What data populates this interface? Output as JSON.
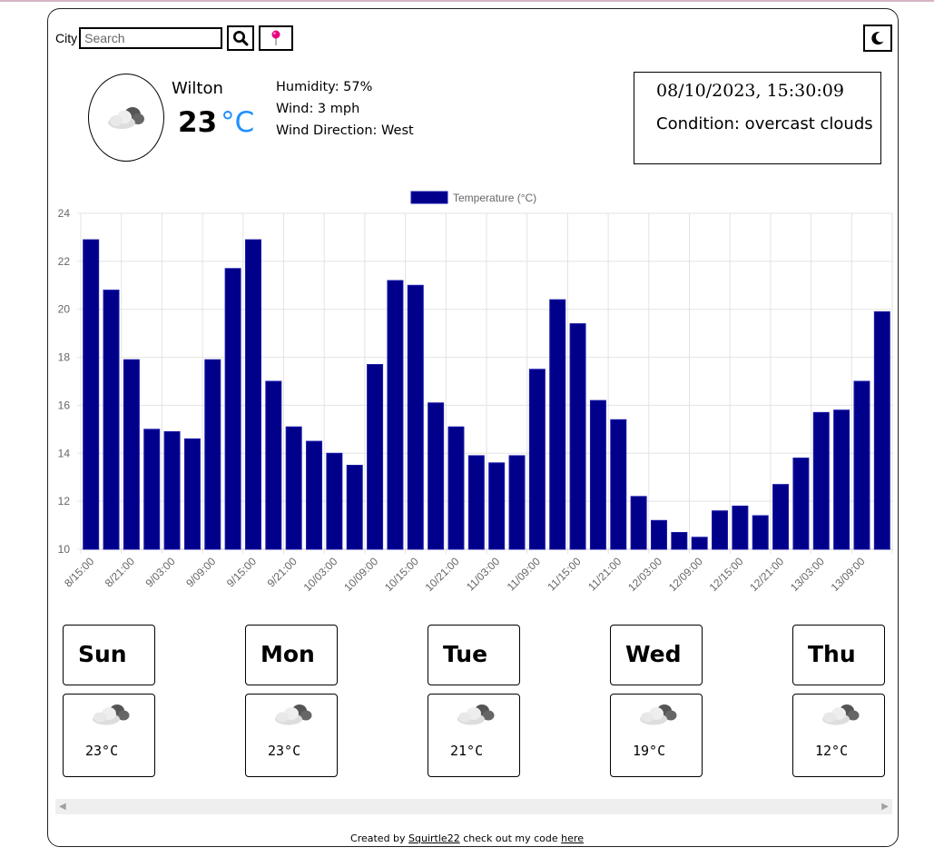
{
  "search": {
    "label": "City",
    "placeholder": "Search"
  },
  "current": {
    "city": "Wilton",
    "temp": "23",
    "unit": "°C",
    "humidity": "Humidity: 57%",
    "wind": "Wind: 3 mph",
    "wind_direction": "Wind Direction: West",
    "datetime": "08/10/2023, 15:30:09",
    "condition": "Condition: overcast clouds",
    "icon": "overcast-clouds-icon"
  },
  "chart_data": {
    "type": "bar",
    "legend": "Temperature (°C)",
    "legend_position": "top",
    "grid": true,
    "ylim": [
      10,
      24
    ],
    "yticks": [
      10,
      12,
      14,
      16,
      18,
      20,
      22,
      24
    ],
    "color": "#00008b",
    "categories": [
      "8/15:00",
      "8/18:00",
      "8/21:00",
      "9/00:00",
      "9/03:00",
      "9/06:00",
      "9/09:00",
      "9/12:00",
      "9/15:00",
      "9/18:00",
      "9/21:00",
      "10/00:00",
      "10/03:00",
      "10/06:00",
      "10/09:00",
      "10/12:00",
      "10/15:00",
      "10/18:00",
      "10/21:00",
      "11/00:00",
      "11/03:00",
      "11/06:00",
      "11/09:00",
      "11/12:00",
      "11/15:00",
      "11/18:00",
      "11/21:00",
      "12/00:00",
      "12/03:00",
      "12/06:00",
      "12/09:00",
      "12/12:00",
      "12/15:00",
      "12/18:00",
      "12/21:00",
      "13/00:00",
      "13/03:00",
      "13/06:00",
      "13/09:00",
      "13/12:00"
    ],
    "tick_labels": [
      "8/15:00",
      "8/21:00",
      "9/03:00",
      "9/09:00",
      "9/15:00",
      "9/21:00",
      "10/03:00",
      "10/09:00",
      "10/15:00",
      "10/21:00",
      "11/03:00",
      "11/09:00",
      "11/15:00",
      "11/21:00",
      "12/03:00",
      "12/09:00",
      "12/15:00",
      "12/21:00",
      "13/03:00",
      "13/09:00"
    ],
    "values": [
      22.9,
      20.8,
      17.9,
      15.0,
      14.9,
      14.6,
      17.9,
      21.7,
      22.9,
      17.0,
      15.1,
      14.5,
      14.0,
      13.5,
      17.7,
      21.2,
      21.0,
      16.1,
      15.1,
      13.9,
      13.6,
      13.9,
      17.5,
      20.4,
      19.4,
      16.2,
      15.4,
      12.2,
      11.2,
      10.7,
      10.5,
      11.6,
      11.8,
      11.4,
      12.7,
      13.8,
      15.7,
      15.8,
      17.0,
      19.9
    ]
  },
  "forecast": [
    {
      "day": "Sun",
      "temp": "23°C",
      "icon": "overcast-clouds-icon"
    },
    {
      "day": "Mon",
      "temp": "23°C",
      "icon": "overcast-clouds-icon"
    },
    {
      "day": "Tue",
      "temp": "21°C",
      "icon": "overcast-clouds-icon"
    },
    {
      "day": "Wed",
      "temp": "19°C",
      "icon": "overcast-clouds-icon"
    },
    {
      "day": "Thu",
      "temp": "12°C",
      "icon": "overcast-clouds-icon"
    }
  ],
  "footer": {
    "text1": "Created by ",
    "author": "Squirtle22",
    "text2": " check out my code ",
    "link": "here"
  }
}
